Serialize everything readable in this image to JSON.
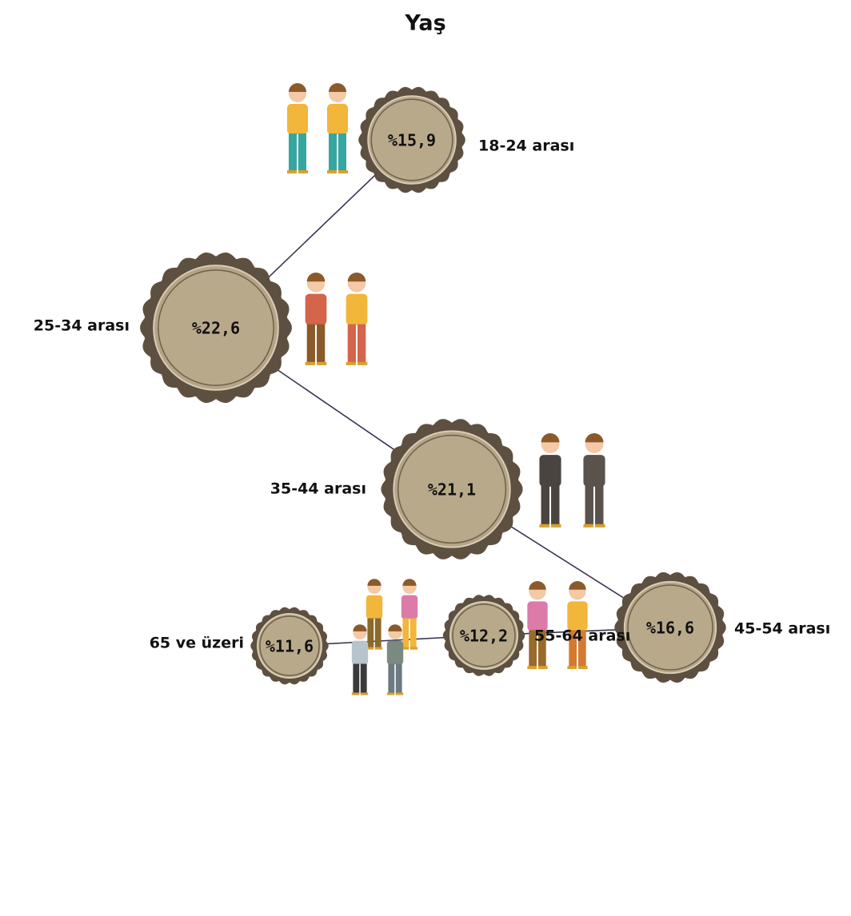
{
  "title": "Yaş",
  "nodes": [
    {
      "label": "18-24 arası",
      "value": 15.9,
      "value_label": "%15,9"
    },
    {
      "label": "25-34 arası",
      "value": 22.6,
      "value_label": "%22,6"
    },
    {
      "label": "35-44 arası",
      "value": 21.1,
      "value_label": "%21,1"
    },
    {
      "label": "45-54 arası",
      "value": 16.6,
      "value_label": "%16,6"
    },
    {
      "label": "55-64 arası",
      "value": 12.2,
      "value_label": "%12,2"
    },
    {
      "label": "65 ve üzeri",
      "value": 11.6,
      "value_label": "%11,6"
    }
  ]
}
